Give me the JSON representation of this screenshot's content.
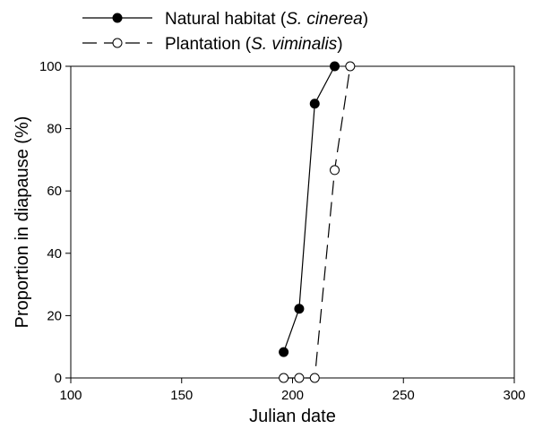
{
  "chart_data": {
    "type": "line",
    "title": "",
    "xlabel": "Julian date",
    "ylabel": "Proportion in diapause (%)",
    "xlim": [
      100,
      300
    ],
    "ylim": [
      0,
      100
    ],
    "xticks": [
      100,
      150,
      200,
      250,
      300
    ],
    "yticks": [
      0,
      20,
      40,
      60,
      80,
      100
    ],
    "grid": false,
    "legend_position": "top-left, above plot",
    "series": [
      {
        "name": "Natural habitat (S. cinerea)",
        "name_parts": [
          "Natural habitat (",
          "S. cinerea",
          ")"
        ],
        "marker": "filled-circle",
        "line": "solid",
        "color": "#000000",
        "x": [
          196,
          203,
          210,
          219
        ],
        "y": [
          8.3,
          22.2,
          88,
          100
        ]
      },
      {
        "name": "Plantation (S. viminalis)",
        "name_parts": [
          "Plantation (",
          "S. viminalis",
          ")"
        ],
        "marker": "open-circle",
        "line": "dashed",
        "color": "#000000",
        "x": [
          196,
          203,
          210,
          219,
          226
        ],
        "y": [
          0,
          0,
          0,
          66.7,
          100
        ]
      }
    ]
  }
}
